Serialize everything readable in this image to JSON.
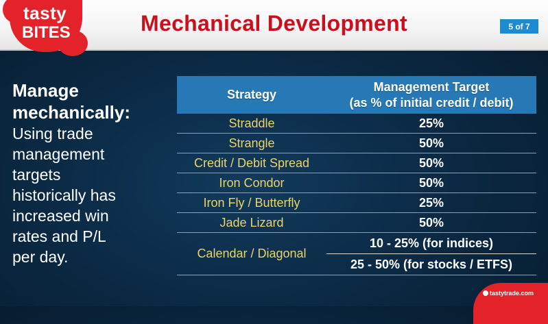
{
  "header": {
    "logo_line1": "tasty",
    "logo_line2": "BITES",
    "title": "Mechanical Development",
    "page_indicator": "5 of 7"
  },
  "left_panel": {
    "heading_line1": "Manage",
    "heading_line2": "mechanically:",
    "body_lines": [
      "Using trade",
      "management",
      "targets",
      "historically has",
      "increased win",
      "rates and P/L",
      "per day."
    ]
  },
  "table": {
    "headers": {
      "strategy": "Strategy",
      "target_line1": "Management Target",
      "target_line2": "(as % of initial credit / debit)"
    },
    "rows": [
      {
        "strategy": "Straddle",
        "target": "25%"
      },
      {
        "strategy": "Strangle",
        "target": "50%"
      },
      {
        "strategy": "Credit / Debit Spread",
        "target": "50%"
      },
      {
        "strategy": "Iron Condor",
        "target": "50%"
      },
      {
        "strategy": "Iron Fly / Butterfly",
        "target": "25%"
      },
      {
        "strategy": "Jade Lizard",
        "target": "50%"
      }
    ],
    "calendar": {
      "strategy": "Calendar / Diagonal",
      "target1": "10 - 25% (for indices)",
      "target2": "25 - 50% (for stocks / ETFS)"
    }
  },
  "footer": {
    "brand": "tastytrade.com"
  },
  "colors": {
    "title_red": "#c8101e",
    "header_blue": "#2679b5",
    "strategy_yellow": "#ead46a",
    "background": "#0b2a45"
  }
}
